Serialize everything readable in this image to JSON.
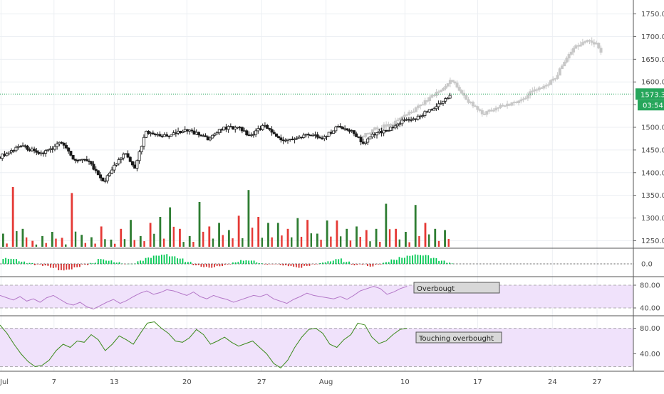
{
  "colors": {
    "up": "#26a69a",
    "up_dark": "#1a1a1a",
    "down": "#1a1a1a",
    "vol_up": "#2e7d32",
    "vol_down": "#e53935",
    "ghost": "#c8c8c8",
    "osc_pos": "#00c853",
    "osc_neg": "#d32f2f",
    "rsi_line": "#b478c8",
    "stoch_line": "#3a8a1a",
    "band": "#f0e2fb",
    "price_tag": "#26a65b",
    "grid": "#eceff3",
    "axis_text": "#4a4a4a"
  },
  "chart_data": [
    {
      "type": "candlestick",
      "panel": "price",
      "ylim": [
        1235,
        1765
      ],
      "y_ticks": [
        "1750.0",
        "1700.0",
        "1650.0",
        "1600.0",
        "1550.0",
        "1500.0",
        "1450.0",
        "1400.0",
        "1350.0",
        "1300.0",
        "1250.0"
      ],
      "last_price_label": "1573.3",
      "countdown_label": "03:54",
      "last_price": 1573.3,
      "x_ticks": [
        "Jul",
        "7",
        "13",
        "20",
        "27",
        "Aug",
        "10",
        "17",
        "24",
        "27"
      ],
      "actual_path": [
        {
          "x": 0,
          "y": 1435
        },
        {
          "x": 2,
          "y": 1460
        },
        {
          "x": 4,
          "y": 1440
        },
        {
          "x": 6,
          "y": 1468
        },
        {
          "x": 7,
          "y": 1430
        },
        {
          "x": 8.5,
          "y": 1425
        },
        {
          "x": 10,
          "y": 1380
        },
        {
          "x": 11,
          "y": 1415
        },
        {
          "x": 12,
          "y": 1445
        },
        {
          "x": 13,
          "y": 1410
        },
        {
          "x": 14,
          "y": 1490
        },
        {
          "x": 16,
          "y": 1480
        },
        {
          "x": 18,
          "y": 1495
        },
        {
          "x": 20,
          "y": 1475
        },
        {
          "x": 21.5,
          "y": 1498
        },
        {
          "x": 23,
          "y": 1500
        },
        {
          "x": 24,
          "y": 1480
        },
        {
          "x": 25.5,
          "y": 1505
        },
        {
          "x": 27,
          "y": 1470
        },
        {
          "x": 29,
          "y": 1480
        },
        {
          "x": 30,
          "y": 1483
        },
        {
          "x": 31,
          "y": 1475
        },
        {
          "x": 32.5,
          "y": 1500
        },
        {
          "x": 34,
          "y": 1490
        },
        {
          "x": 35,
          "y": 1465
        },
        {
          "x": 36,
          "y": 1485
        },
        {
          "x": 38,
          "y": 1500
        },
        {
          "x": 39,
          "y": 1518
        },
        {
          "x": 40,
          "y": 1520
        },
        {
          "x": 41,
          "y": 1533
        },
        {
          "x": 42,
          "y": 1545
        },
        {
          "x": 43,
          "y": 1562
        },
        {
          "x": 43.5,
          "y": 1572
        }
      ],
      "ghost_path": [
        {
          "x": 35,
          "y": 1480
        },
        {
          "x": 36,
          "y": 1495
        },
        {
          "x": 38,
          "y": 1510
        },
        {
          "x": 40,
          "y": 1540
        },
        {
          "x": 42,
          "y": 1575
        },
        {
          "x": 43.5,
          "y": 1605
        },
        {
          "x": 45,
          "y": 1560
        },
        {
          "x": 46.5,
          "y": 1530
        },
        {
          "x": 48,
          "y": 1545
        },
        {
          "x": 50,
          "y": 1555
        },
        {
          "x": 51.5,
          "y": 1585
        },
        {
          "x": 52.5,
          "y": 1590
        },
        {
          "x": 53.5,
          "y": 1610
        },
        {
          "x": 54.5,
          "y": 1650
        },
        {
          "x": 55.5,
          "y": 1680
        },
        {
          "x": 56.5,
          "y": 1690
        },
        {
          "x": 57.5,
          "y": 1685
        },
        {
          "x": 58,
          "y": 1655
        }
      ]
    },
    {
      "type": "bar",
      "panel": "volume",
      "ylim": [
        0,
        100
      ],
      "values": [
        22,
        100,
        30,
        10,
        18,
        25,
        15,
        90,
        20,
        16,
        34,
        12,
        30,
        45,
        18,
        40,
        50,
        66,
        30,
        18,
        75,
        34,
        40,
        28,
        52,
        95,
        50,
        40,
        40,
        30,
        48,
        45,
        22,
        44,
        44,
        30,
        34,
        28,
        30,
        72,
        30,
        25,
        70,
        40,
        30,
        28
      ],
      "up": [
        true,
        false,
        true,
        false,
        true,
        true,
        false,
        false,
        true,
        true,
        false,
        true,
        false,
        true,
        true,
        false,
        true,
        true,
        false,
        true,
        true,
        false,
        true,
        true,
        false,
        true,
        false,
        true,
        true,
        false,
        true,
        false,
        true,
        true,
        false,
        true,
        true,
        false,
        true,
        true,
        false,
        true,
        true,
        false,
        true,
        true
      ]
    },
    {
      "type": "bar",
      "panel": "oscillator",
      "ylim": [
        -1,
        1
      ],
      "y_ticks": [
        "0.0"
      ],
      "values": [
        0.55,
        0.5,
        0.25,
        0.05,
        -0.1,
        -0.2,
        -0.4,
        -0.65,
        -0.55,
        -0.3,
        -0.1,
        0.1,
        0.45,
        0.3,
        0.15,
        0.0,
        0.05,
        0.3,
        0.6,
        0.85,
        0.95,
        0.8,
        0.55,
        0.2,
        -0.1,
        -0.3,
        -0.35,
        -0.2,
        -0.05,
        0.15,
        0.35,
        0.3,
        0.1,
        -0.05,
        0.0,
        -0.15,
        -0.25,
        -0.35,
        -0.2,
        -0.05,
        0.1,
        0.3,
        0.5,
        0.2,
        -0.1,
        -0.05,
        -0.25,
        -0.1,
        0.15,
        0.4,
        0.65,
        0.8,
        0.9,
        0.85,
        0.6,
        0.3,
        0.1
      ]
    },
    {
      "type": "line",
      "panel": "rsi",
      "ylim": [
        30,
        90
      ],
      "y_ticks": [
        "80.00",
        "40.00"
      ],
      "band": [
        40,
        80
      ],
      "annotation": "Overbougt",
      "values": [
        62,
        58,
        54,
        60,
        52,
        56,
        50,
        58,
        62,
        55,
        48,
        45,
        50,
        42,
        38,
        44,
        50,
        55,
        48,
        53,
        60,
        66,
        70,
        64,
        67,
        72,
        70,
        66,
        62,
        68,
        60,
        56,
        62,
        58,
        55,
        50,
        54,
        58,
        62,
        60,
        64,
        56,
        52,
        48,
        55,
        60,
        66,
        62,
        60,
        58,
        56,
        60,
        55,
        62,
        70,
        74,
        78,
        74,
        64,
        68,
        74,
        78
      ]
    },
    {
      "type": "line",
      "panel": "stoch",
      "ylim": [
        15,
        95
      ],
      "y_ticks": [
        "80.00",
        "40.00"
      ],
      "band": [
        20,
        80
      ],
      "annotation": "Touching overbought",
      "values": [
        85,
        72,
        55,
        40,
        28,
        20,
        22,
        30,
        45,
        55,
        50,
        60,
        58,
        70,
        62,
        45,
        55,
        68,
        62,
        55,
        72,
        88,
        90,
        80,
        72,
        60,
        58,
        65,
        78,
        70,
        55,
        60,
        66,
        58,
        52,
        56,
        60,
        50,
        40,
        25,
        18,
        30,
        50,
        66,
        78,
        80,
        72,
        55,
        50,
        62,
        70,
        88,
        85,
        66,
        56,
        60,
        70,
        78,
        80
      ]
    }
  ]
}
